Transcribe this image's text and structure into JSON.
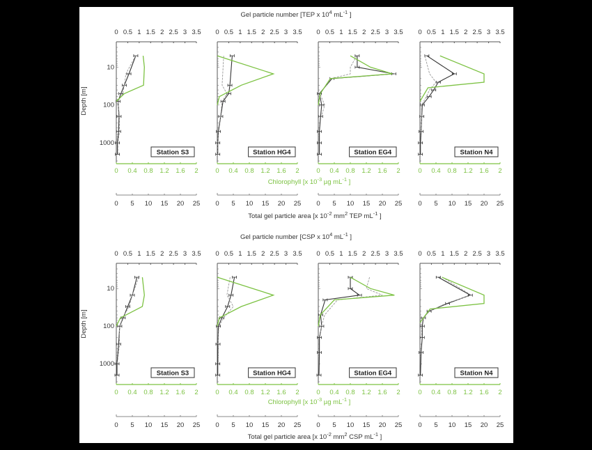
{
  "figure": {
    "rows": [
      {
        "id": "tep",
        "top_axis_title": "Gel particle number [TEP x 10",
        "top_axis_title_sup": "4",
        "top_axis_title_unit": " mL",
        "top_axis_title_unit_sup": "-1",
        "top_axis_title_end": " ]",
        "chl_title": "Chlorophyll [x 10",
        "chl_title_sup": "-3",
        "chl_title_unit": " µg mL",
        "chl_title_unit_sup": "-1",
        "chl_title_end": " ]",
        "area_title": "Total gel particle area [x 10",
        "area_title_sup": "-2",
        "area_title_mid": " mm",
        "area_title_mid_sup": "2",
        "area_title_unit": " TEP mL",
        "area_title_unit_sup": "-1",
        "area_title_end": " ]"
      },
      {
        "id": "csp",
        "top_axis_title": "Gel particle number [CSP x 10",
        "top_axis_title_sup": "4",
        "top_axis_title_unit": " mL",
        "top_axis_title_unit_sup": "-1",
        "top_axis_title_end": " ]",
        "chl_title": "Chlorophyll [x 10",
        "chl_title_sup": "-3",
        "chl_title_unit": " µg mL",
        "chl_title_unit_sup": "-1",
        "chl_title_end": " ]",
        "area_title": "Total gel particle area [x 10",
        "area_title_sup": "-2",
        "area_title_mid": " mm",
        "area_title_mid_sup": "2",
        "area_title_unit": " CSP mL",
        "area_title_unit_sup": "-1",
        "area_title_end": " ]"
      }
    ],
    "y_axis_label": "Depth [m]",
    "y_ticks": [
      "10",
      "100",
      "1000"
    ],
    "number_ticks": [
      "0",
      "0.5",
      "1",
      "1.5",
      "2",
      "2.5",
      "3",
      "3.5"
    ],
    "chl_ticks": [
      "0",
      "0.4",
      "0.8",
      "1.2",
      "1.6",
      "2"
    ],
    "area_ticks": [
      "0",
      "5",
      "10",
      "15",
      "20",
      "25"
    ],
    "stations": [
      "Station S3",
      "Station HG4",
      "Station EG4",
      "Station N4"
    ],
    "colors": {
      "chlorophyll": "#7cc242",
      "number": "#333333",
      "area": "#999999",
      "background": "#000000",
      "panel": "#ffffff"
    }
  },
  "chart_data": [
    {
      "type": "line",
      "title": "TEP profiles",
      "row": "tep",
      "ylabel": "Depth [m]",
      "yscale": "log",
      "ylim": [
        3,
        3000
      ],
      "y_inverted": true,
      "x_axes": {
        "number": {
          "label": "Gel particle number [TEP x 10^4 mL^-1]",
          "range": [
            0,
            3.5
          ]
        },
        "chlorophyll": {
          "label": "Chlorophyll [x 10^-3 µg mL^-1]",
          "range": [
            0,
            2
          ]
        },
        "area": {
          "label": "Total gel particle area [x 10^-2 mm^2 TEP mL^-1]",
          "range": [
            0,
            25
          ]
        }
      },
      "panels": [
        {
          "station": "Station S3",
          "series": [
            {
              "name": "Gel particle number",
              "depth": [
                5,
                15,
                30,
                50,
                80,
                200,
                500,
                1000,
                2000
              ],
              "values": [
                0.85,
                0.55,
                0.35,
                0.2,
                0.08,
                0.12,
                0.1,
                0.05,
                0.05
              ]
            },
            {
              "name": "Total gel particle area",
              "depth": [
                5,
                15,
                30,
                50,
                80,
                200,
                500,
                1000,
                2000
              ],
              "values": [
                6,
                3,
                2.5,
                2,
                0.5,
                1,
                1,
                0.5,
                0.5
              ]
            },
            {
              "name": "Chlorophyll",
              "depth": [
                5,
                10,
                30,
                50,
                80
              ],
              "values": [
                0.67,
                0.7,
                0.68,
                0.2,
                0
              ]
            }
          ]
        },
        {
          "station": "Station HG4",
          "series": [
            {
              "name": "Gel particle number",
              "depth": [
                5,
                30,
                50,
                80,
                200,
                500,
                1000,
                2000
              ],
              "values": [
                0.65,
                0.55,
                0.5,
                0.25,
                0.15,
                0.05,
                0.02,
                0.02
              ]
            },
            {
              "name": "Total gel particle area",
              "depth": [
                5,
                30,
                50,
                80,
                200,
                500,
                2000
              ],
              "values": [
                2,
                1.5,
                3,
                1.5,
                1,
                0.2,
                0.2
              ]
            },
            {
              "name": "Chlorophyll",
              "depth": [
                5,
                15,
                30,
                60,
                100
              ],
              "values": [
                0,
                1.4,
                0.6,
                0.05,
                0
              ]
            }
          ]
        },
        {
          "station": "Station EG4",
          "series": [
            {
              "name": "Gel particle number",
              "depth": [
                5,
                10,
                15,
                20,
                50,
                100,
                200,
                500,
                1000,
                2000
              ],
              "values": [
                1.7,
                1.7,
                3.3,
                0.6,
                0.05,
                0.15,
                0.1,
                0.05,
                0.05,
                0.05
              ]
            },
            {
              "name": "Total gel particle area",
              "depth": [
                5,
                10,
                15,
                20,
                50,
                100,
                200
              ],
              "values": [
                12,
                10,
                10,
                4,
                0.5,
                2,
                1
              ]
            },
            {
              "name": "Chlorophyll",
              "depth": [
                5,
                10,
                15,
                20,
                50,
                100
              ],
              "values": [
                0.8,
                1.3,
                1.85,
                0.3,
                0.05,
                0
              ]
            }
          ]
        },
        {
          "station": "Station N4",
          "series": [
            {
              "name": "Gel particle number",
              "depth": [
                5,
                15,
                25,
                40,
                60,
                100,
                200,
                500,
                1000,
                2000
              ],
              "values": [
                0.3,
                1.5,
                0.8,
                0.6,
                0.4,
                0.1,
                0.08,
                0.05,
                0.02,
                0.02
              ]
            },
            {
              "name": "Total gel particle area",
              "depth": [
                5,
                15,
                25,
                40,
                60,
                100,
                200,
                500
              ],
              "values": [
                1.5,
                3,
                5,
                3,
                2,
                0.5,
                0.5,
                0.3
              ]
            },
            {
              "name": "Chlorophyll",
              "depth": [
                5,
                15,
                25,
                35,
                80
              ],
              "values": [
                0.5,
                1.6,
                1.6,
                0.2,
                0
              ]
            }
          ]
        }
      ]
    },
    {
      "type": "line",
      "title": "CSP profiles",
      "row": "csp",
      "ylabel": "Depth [m]",
      "yscale": "log",
      "ylim": [
        3,
        3000
      ],
      "y_inverted": true,
      "x_axes": {
        "number": {
          "label": "Gel particle number [CSP x 10^4 mL^-1]",
          "range": [
            0,
            3.5
          ]
        },
        "chlorophyll": {
          "label": "Chlorophyll [x 10^-3 µg mL^-1]",
          "range": [
            0,
            2
          ]
        },
        "area": {
          "label": "Total gel particle area [x 10^-2 mm^2 CSP mL^-1]",
          "range": [
            0,
            25
          ]
        }
      },
      "panels": [
        {
          "station": "Station S3",
          "series": [
            {
              "name": "Gel particle number",
              "depth": [
                5,
                15,
                30,
                60,
                100,
                300,
                1000,
                2000
              ],
              "values": [
                0.9,
                0.7,
                0.5,
                0.3,
                0.15,
                0.1,
                0.03,
                0.03
              ]
            },
            {
              "name": "Total gel particle area",
              "depth": [
                5,
                15,
                30,
                60,
                100,
                300,
                1000
              ],
              "values": [
                7,
                5,
                4,
                2,
                1,
                1,
                0.3
              ]
            },
            {
              "name": "Chlorophyll",
              "depth": [
                5,
                15,
                30,
                60,
                100
              ],
              "values": [
                0.65,
                0.7,
                0.65,
                0.1,
                0
              ]
            }
          ]
        },
        {
          "station": "Station HG4",
          "series": [
            {
              "name": "Gel particle number",
              "depth": [
                5,
                15,
                30,
                60,
                100,
                300,
                1000,
                2000
              ],
              "values": [
                0.75,
                0.6,
                0.45,
                0.2,
                0.05,
                0.03,
                0.02,
                0.02
              ]
            },
            {
              "name": "Total gel particle area",
              "depth": [
                5,
                15,
                30,
                60,
                100,
                300
              ],
              "values": [
                4,
                3,
                5,
                2,
                0.5,
                0.2
              ]
            },
            {
              "name": "Chlorophyll",
              "depth": [
                5,
                15,
                30,
                60,
                100
              ],
              "values": [
                0,
                1.4,
                0.6,
                0.05,
                0
              ]
            }
          ]
        },
        {
          "station": "Station EG4",
          "series": [
            {
              "name": "Gel particle number",
              "depth": [
                5,
                10,
                15,
                20,
                50,
                100,
                200,
                500,
                2000
              ],
              "values": [
                1.4,
                1.4,
                1.8,
                0.3,
                0.1,
                0.15,
                0.05,
                0.05,
                0.03
              ]
            },
            {
              "name": "Total gel particle area",
              "depth": [
                5,
                10,
                15,
                20,
                50,
                100,
                200
              ],
              "values": [
                16,
                15,
                20,
                6,
                2,
                1,
                0.5
              ]
            },
            {
              "name": "Chlorophyll",
              "depth": [
                5,
                10,
                15,
                20,
                50,
                100
              ],
              "values": [
                0.8,
                1.3,
                1.9,
                0.4,
                0.05,
                0
              ]
            }
          ]
        },
        {
          "station": "Station N4",
          "series": [
            {
              "name": "Gel particle number",
              "depth": [
                5,
                15,
                25,
                40,
                60,
                100,
                200,
                500,
                2000
              ],
              "values": [
                0.8,
                2.2,
                1.2,
                0.4,
                0.15,
                0.1,
                0.1,
                0.05,
                0.02
              ]
            },
            {
              "name": "Total gel particle area",
              "depth": [
                5,
                15,
                25,
                40,
                60,
                100,
                200
              ],
              "values": [
                7,
                16,
                8,
                3,
                1,
                0.5,
                0.5
              ]
            },
            {
              "name": "Chlorophyll",
              "depth": [
                5,
                15,
                25,
                35,
                80
              ],
              "values": [
                0.55,
                1.6,
                1.6,
                0.25,
                0
              ]
            }
          ]
        }
      ]
    }
  ]
}
